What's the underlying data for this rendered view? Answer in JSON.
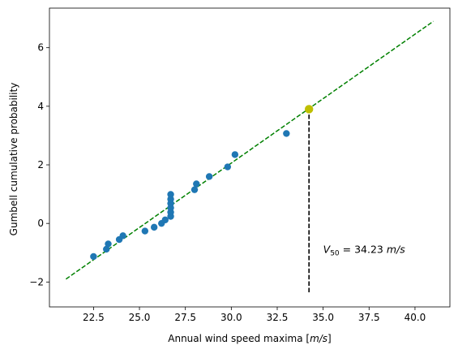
{
  "chart_data": {
    "type": "scatter",
    "xlabel": "Annual wind speed maxima [m/s]",
    "xlabel_parts": {
      "text": "Annual wind speed maxima [",
      "unit": "m/s",
      "close": "]"
    },
    "ylabel": "Gumbell cumulative probability",
    "xlim": [
      20.1,
      41.9
    ],
    "ylim": [
      -2.85,
      7.35
    ],
    "x_ticks": [
      22.5,
      25.0,
      27.5,
      30.0,
      32.5,
      35.0,
      37.5,
      40.0
    ],
    "x_tick_labels": [
      "22.5",
      "25.0",
      "27.5",
      "30.0",
      "32.5",
      "35.0",
      "37.5",
      "40.0"
    ],
    "y_ticks": [
      -2,
      0,
      2,
      4,
      6
    ],
    "y_tick_labels": [
      "−2",
      "0",
      "2",
      "4",
      "6"
    ],
    "grid": false,
    "series": [
      {
        "kind": "points",
        "color": "#1f77b4",
        "x": [
          22.5,
          23.2,
          23.3,
          23.9,
          24.1,
          25.3,
          25.8,
          26.2,
          26.4,
          26.7,
          26.7,
          26.7,
          26.7,
          26.7,
          26.7,
          28.0,
          28.1,
          28.8,
          29.8,
          30.2,
          33.0
        ],
        "y": [
          -1.13,
          -0.88,
          -0.7,
          -0.55,
          -0.42,
          -0.26,
          -0.13,
          0.0,
          0.12,
          0.24,
          0.38,
          0.53,
          0.68,
          0.83,
          0.99,
          1.15,
          1.35,
          1.6,
          1.93,
          2.35,
          3.07
        ]
      },
      {
        "kind": "fit-line",
        "color": "#008000",
        "style": "dashed",
        "x": [
          21.0,
          41.0
        ],
        "y": [
          -1.9,
          6.9
        ]
      },
      {
        "kind": "highlight-point",
        "color": "#bfbf00",
        "x": [
          34.23
        ],
        "y": [
          3.9
        ]
      },
      {
        "kind": "vertical-marker",
        "color": "#000000",
        "style": "dashed",
        "x": 34.23,
        "y_from": -2.35,
        "y_to": 3.9
      }
    ],
    "annotation": {
      "symbol": "V",
      "subscript": "50",
      "equals": " = 34.23 ",
      "unit": "m/s",
      "x": 35.0,
      "y": -0.9
    }
  }
}
